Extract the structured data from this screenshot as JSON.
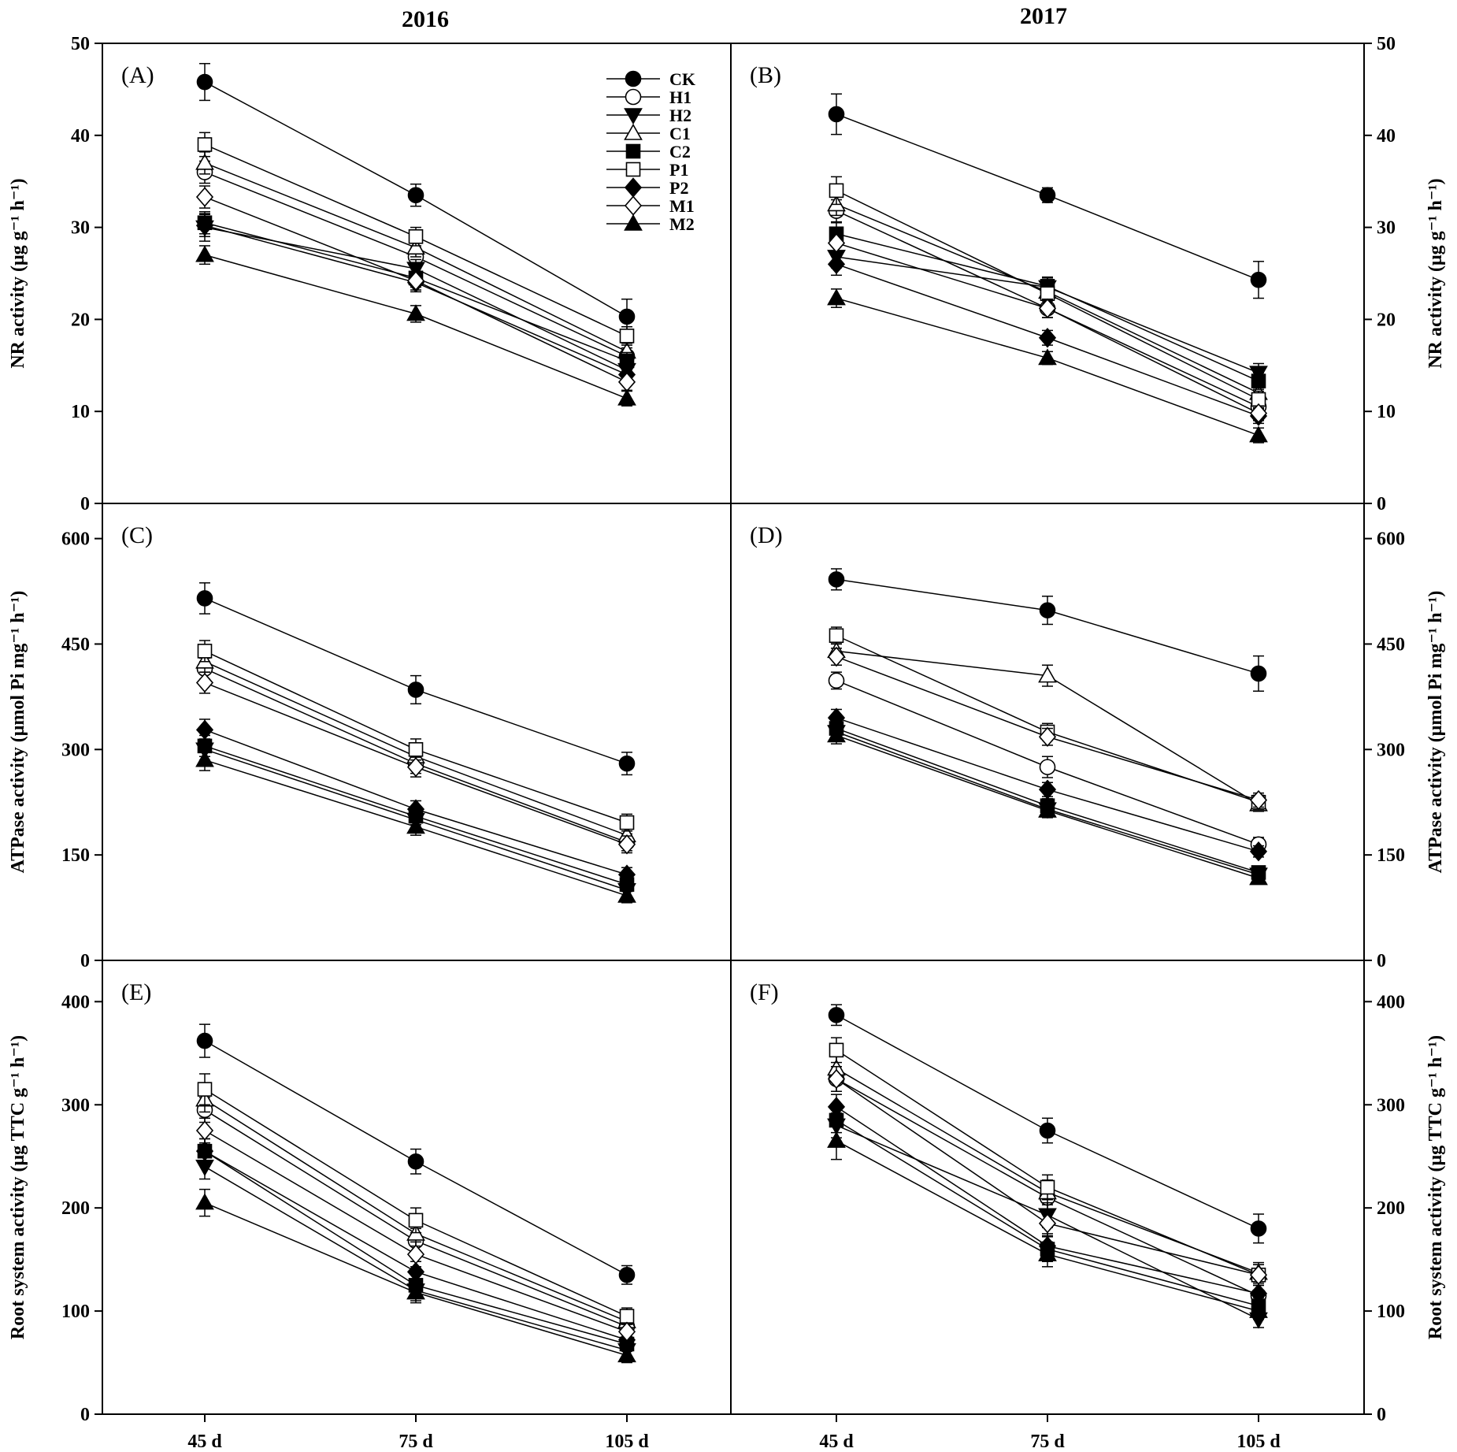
{
  "figure": {
    "year_left": "2016",
    "year_right": "2017",
    "x_categories": [
      "45 d",
      "75 d",
      "105 d"
    ]
  },
  "legend": [
    {
      "name": "CK",
      "marker": "circle",
      "filled": true
    },
    {
      "name": "H1",
      "marker": "circle",
      "filled": false
    },
    {
      "name": "H2",
      "marker": "triangle-down",
      "filled": true
    },
    {
      "name": "C1",
      "marker": "triangle-up",
      "filled": false
    },
    {
      "name": "C2",
      "marker": "square",
      "filled": true
    },
    {
      "name": "P1",
      "marker": "square",
      "filled": false
    },
    {
      "name": "P2",
      "marker": "diamond",
      "filled": true
    },
    {
      "name": "M1",
      "marker": "diamond",
      "filled": false
    },
    {
      "name": "M2",
      "marker": "triangle-up",
      "filled": true
    }
  ],
  "chart_data": [
    {
      "type": "line",
      "panel": "(A)",
      "year": "2016",
      "row": "NR",
      "ylabel": "NR activity (μg g⁻¹ h⁻¹)",
      "ylim": [
        0,
        50
      ],
      "yticks": [
        0,
        10,
        20,
        30,
        40,
        50
      ],
      "ytick_labels": [
        "0",
        "10",
        "20",
        "30",
        "40",
        "50"
      ],
      "categories": [
        "45 d",
        "75 d",
        "105 d"
      ],
      "series": [
        {
          "name": "CK",
          "values": [
            45.8,
            33.5,
            20.3
          ],
          "errors": [
            2.0,
            1.2,
            1.9
          ]
        },
        {
          "name": "H1",
          "values": [
            36.0,
            26.8,
            16.0
          ],
          "errors": [
            1.2,
            1.0,
            0.9
          ]
        },
        {
          "name": "H2",
          "values": [
            30.0,
            25.5,
            14.5
          ],
          "errors": [
            1.5,
            1.0,
            1.0
          ]
        },
        {
          "name": "C1",
          "values": [
            37.0,
            27.8,
            16.5
          ],
          "errors": [
            1.2,
            1.0,
            0.9
          ]
        },
        {
          "name": "C2",
          "values": [
            30.5,
            24.5,
            15.5
          ],
          "errors": [
            1.2,
            1.0,
            0.9
          ]
        },
        {
          "name": "P1",
          "values": [
            39.0,
            29.0,
            18.2
          ],
          "errors": [
            1.3,
            1.0,
            1.0
          ]
        },
        {
          "name": "P2",
          "values": [
            30.2,
            24.0,
            14.0
          ],
          "errors": [
            1.2,
            1.0,
            0.9
          ]
        },
        {
          "name": "M1",
          "values": [
            33.3,
            24.2,
            13.2
          ],
          "errors": [
            1.2,
            1.0,
            0.9
          ]
        },
        {
          "name": "M2",
          "values": [
            27.0,
            20.6,
            11.4
          ],
          "errors": [
            1.0,
            0.9,
            0.8
          ]
        }
      ]
    },
    {
      "type": "line",
      "panel": "(B)",
      "year": "2017",
      "row": "NR",
      "ylabel": "NR activity (μg g⁻¹ h⁻¹)",
      "ylim": [
        0,
        50
      ],
      "yticks": [
        0,
        10,
        20,
        30,
        40,
        50
      ],
      "ytick_labels": [
        "0",
        "10",
        "20",
        "30",
        "40",
        "50"
      ],
      "categories": [
        "45 d",
        "75 d",
        "105 d"
      ],
      "series": [
        {
          "name": "CK",
          "values": [
            42.3,
            33.5,
            24.3
          ],
          "errors": [
            2.2,
            0.8,
            2.0
          ]
        },
        {
          "name": "H1",
          "values": [
            31.8,
            21.2,
            10.5
          ],
          "errors": [
            1.2,
            1.0,
            0.9
          ]
        },
        {
          "name": "H2",
          "values": [
            26.8,
            23.5,
            14.2
          ],
          "errors": [
            1.2,
            1.0,
            1.0
          ]
        },
        {
          "name": "C1",
          "values": [
            32.5,
            23.0,
            12.0
          ],
          "errors": [
            1.2,
            1.0,
            0.9
          ]
        },
        {
          "name": "C2",
          "values": [
            29.3,
            23.6,
            13.3
          ],
          "errors": [
            1.2,
            1.0,
            0.9
          ]
        },
        {
          "name": "P1",
          "values": [
            34.0,
            22.8,
            11.3
          ],
          "errors": [
            1.5,
            1.0,
            0.9
          ]
        },
        {
          "name": "P2",
          "values": [
            26.0,
            18.0,
            9.5
          ],
          "errors": [
            1.2,
            0.8,
            0.8
          ]
        },
        {
          "name": "M1",
          "values": [
            28.3,
            21.2,
            9.8
          ],
          "errors": [
            1.2,
            1.0,
            0.8
          ]
        },
        {
          "name": "M2",
          "values": [
            22.3,
            15.8,
            7.4
          ],
          "errors": [
            1.0,
            0.7,
            0.8
          ]
        }
      ]
    },
    {
      "type": "line",
      "panel": "(C)",
      "year": "2016",
      "row": "ATPase",
      "ylabel": "ATPase activity (μmol Pi mg⁻¹ h⁻¹)",
      "ylim": [
        0,
        650
      ],
      "yticks": [
        0,
        150,
        300,
        450,
        600
      ],
      "ytick_labels": [
        "0",
        "150",
        "300",
        "450",
        "600"
      ],
      "categories": [
        "45 d",
        "75 d",
        "105 d"
      ],
      "series": [
        {
          "name": "CK",
          "values": [
            515,
            385,
            280
          ],
          "errors": [
            22,
            20,
            16
          ]
        },
        {
          "name": "H1",
          "values": [
            415,
            280,
            168
          ],
          "errors": [
            15,
            14,
            12
          ]
        },
        {
          "name": "H2",
          "values": [
            300,
            200,
            100
          ],
          "errors": [
            15,
            12,
            10
          ]
        },
        {
          "name": "C1",
          "values": [
            425,
            290,
            178
          ],
          "errors": [
            15,
            14,
            12
          ]
        },
        {
          "name": "C2",
          "values": [
            305,
            205,
            108
          ],
          "errors": [
            15,
            12,
            10
          ]
        },
        {
          "name": "P1",
          "values": [
            440,
            300,
            196
          ],
          "errors": [
            15,
            15,
            12
          ]
        },
        {
          "name": "P2",
          "values": [
            328,
            215,
            122
          ],
          "errors": [
            15,
            12,
            10
          ]
        },
        {
          "name": "M1",
          "values": [
            395,
            275,
            165
          ],
          "errors": [
            15,
            14,
            12
          ]
        },
        {
          "name": "M2",
          "values": [
            285,
            190,
            92
          ],
          "errors": [
            15,
            12,
            10
          ]
        }
      ]
    },
    {
      "type": "line",
      "panel": "(D)",
      "year": "2017",
      "row": "ATPase",
      "ylabel": "ATPase activity (μmol Pi mg⁻¹ h⁻¹)",
      "ylim": [
        0,
        650
      ],
      "yticks": [
        0,
        150,
        300,
        450,
        600
      ],
      "ytick_labels": [
        "0",
        "150",
        "300",
        "450",
        "600"
      ],
      "categories": [
        "45 d",
        "75 d",
        "105 d"
      ],
      "series": [
        {
          "name": "CK",
          "values": [
            542,
            498,
            408
          ],
          "errors": [
            15,
            20,
            25
          ]
        },
        {
          "name": "H1",
          "values": [
            398,
            275,
            165
          ],
          "errors": [
            12,
            15,
            10
          ]
        },
        {
          "name": "H2",
          "values": [
            325,
            215,
            122
          ],
          "errors": [
            12,
            10,
            8
          ]
        },
        {
          "name": "C1",
          "values": [
            440,
            405,
            222
          ],
          "errors": [
            12,
            15,
            10
          ]
        },
        {
          "name": "C2",
          "values": [
            330,
            220,
            125
          ],
          "errors": [
            12,
            10,
            8
          ]
        },
        {
          "name": "P1",
          "values": [
            462,
            325,
            225
          ],
          "errors": [
            12,
            12,
            10
          ]
        },
        {
          "name": "P2",
          "values": [
            345,
            243,
            155
          ],
          "errors": [
            12,
            10,
            8
          ]
        },
        {
          "name": "M1",
          "values": [
            432,
            318,
            228
          ],
          "errors": [
            12,
            12,
            10
          ]
        },
        {
          "name": "M2",
          "values": [
            320,
            213,
            117
          ],
          "errors": [
            12,
            10,
            8
          ]
        }
      ]
    },
    {
      "type": "line",
      "panel": "(E)",
      "year": "2016",
      "row": "Root",
      "ylabel": "Root system activity (μg TTC g⁻¹ h⁻¹)",
      "ylim": [
        0,
        440
      ],
      "yticks": [
        0,
        100,
        200,
        300,
        400
      ],
      "ytick_labels": [
        "0",
        "100",
        "200",
        "300",
        "400"
      ],
      "categories": [
        "45 d",
        "75 d",
        "105 d"
      ],
      "series": [
        {
          "name": "CK",
          "values": [
            362,
            245,
            135
          ],
          "errors": [
            16,
            12,
            9
          ]
        },
        {
          "name": "H1",
          "values": [
            295,
            168,
            85
          ],
          "errors": [
            12,
            12,
            8
          ]
        },
        {
          "name": "H2",
          "values": [
            240,
            120,
            62
          ],
          "errors": [
            12,
            10,
            7
          ]
        },
        {
          "name": "C1",
          "values": [
            305,
            175,
            90
          ],
          "errors": [
            12,
            12,
            8
          ]
        },
        {
          "name": "C2",
          "values": [
            255,
            125,
            68
          ],
          "errors": [
            12,
            10,
            7
          ]
        },
        {
          "name": "P1",
          "values": [
            315,
            188,
            95
          ],
          "errors": [
            15,
            12,
            8
          ]
        },
        {
          "name": "P2",
          "values": [
            255,
            138,
            72
          ],
          "errors": [
            12,
            10,
            7
          ]
        },
        {
          "name": "M1",
          "values": [
            275,
            155,
            80
          ],
          "errors": [
            12,
            12,
            8
          ]
        },
        {
          "name": "M2",
          "values": [
            205,
            118,
            57
          ],
          "errors": [
            13,
            10,
            7
          ]
        }
      ]
    },
    {
      "type": "line",
      "panel": "(F)",
      "year": "2017",
      "row": "Root",
      "ylabel": "Root system activity (μg TTC g⁻¹ h⁻¹)",
      "ylim": [
        0,
        440
      ],
      "yticks": [
        0,
        100,
        200,
        300,
        400
      ],
      "ytick_labels": [
        "0",
        "100",
        "200",
        "300",
        "400"
      ],
      "categories": [
        "45 d",
        "75 d",
        "105 d"
      ],
      "series": [
        {
          "name": "CK",
          "values": [
            387,
            275,
            180
          ],
          "errors": [
            10,
            12,
            14
          ]
        },
        {
          "name": "H1",
          "values": [
            325,
            210,
            115
          ],
          "errors": [
            12,
            12,
            10
          ]
        },
        {
          "name": "H2",
          "values": [
            280,
            193,
            92
          ],
          "errors": [
            12,
            12,
            8
          ]
        },
        {
          "name": "C1",
          "values": [
            335,
            215,
            137
          ],
          "errors": [
            12,
            12,
            10
          ]
        },
        {
          "name": "C2",
          "values": [
            285,
            160,
            105
          ],
          "errors": [
            12,
            12,
            8
          ]
        },
        {
          "name": "P1",
          "values": [
            353,
            220,
            135
          ],
          "errors": [
            12,
            12,
            10
          ]
        },
        {
          "name": "P2",
          "values": [
            298,
            163,
            117
          ],
          "errors": [
            12,
            12,
            8
          ]
        },
        {
          "name": "M1",
          "values": [
            325,
            185,
            135
          ],
          "errors": [
            12,
            12,
            10
          ]
        },
        {
          "name": "M2",
          "values": [
            265,
            155,
            100
          ],
          "errors": [
            18,
            12,
            8
          ]
        }
      ]
    }
  ]
}
